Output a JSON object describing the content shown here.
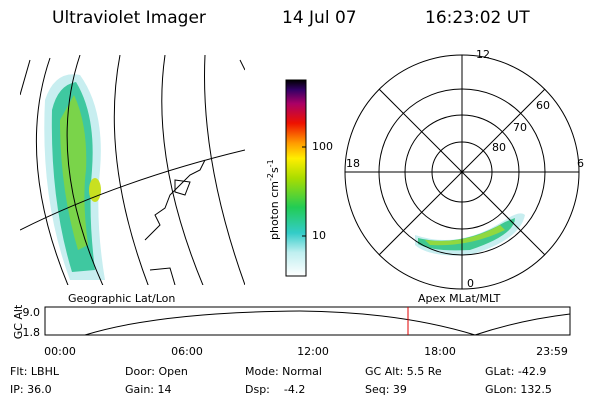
{
  "header": {
    "title": "Ultraviolet Imager",
    "date": "14 Jul 07",
    "time": "16:23:02 UT"
  },
  "colorbar": {
    "label_main": "photon cm",
    "label_exp1": "-2",
    "label_mid": "s",
    "label_exp2": "-1",
    "ticks": [
      "100",
      "10"
    ]
  },
  "polar": {
    "mlt_labels": [
      "12",
      "18",
      "6",
      "0"
    ],
    "lat_labels": [
      "60",
      "70",
      "80"
    ]
  },
  "altitude_plot": {
    "left_title": "Geographic Lat/Lon",
    "right_title": "Apex MLat/MLT",
    "y_label": "GC Alt",
    "yticks": [
      "9.0",
      "1.8"
    ],
    "xticks": [
      "00:00",
      "06:00",
      "12:00",
      "18:00",
      "23:59"
    ]
  },
  "status": {
    "rows": [
      [
        "Flt: LBHL",
        "Door: Open",
        "Mode: Normal",
        "GC Alt: 5.5 Re",
        "GLat: -42.9"
      ],
      [
        "IP: 36.0",
        "Gain: 14",
        "Dsp:    -4.2",
        "Seq: 39",
        "GLon: 132.5"
      ]
    ]
  }
}
